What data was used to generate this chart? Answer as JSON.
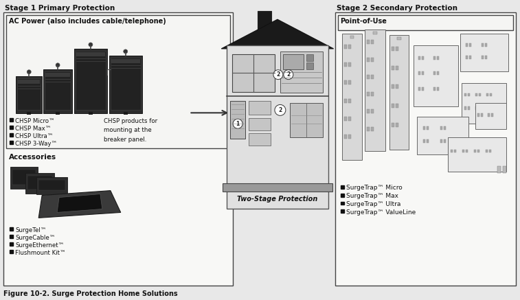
{
  "fig_width": 7.57,
  "fig_height": 4.37,
  "dpi": 100,
  "bg_color": "#e8e8e8",
  "page_color": "#f2f2f2",
  "caption": "Figure 10-2. Surge Protection Home Solutions",
  "stage1_title": "Stage 1 Primary Protection",
  "stage2_title": "Stage 2 Secondary Protection",
  "ac_power_title": "AC Power (also includes cable/telephone)",
  "point_of_use_title": "Point-of-Use",
  "accessories_title": "Accessories",
  "two_stage_label": "Two-Stage Protection",
  "chsp_products_text": "CHSP products for\nmounting at the\nbreaker panel.",
  "chsp_items": [
    "CHSP Micro™",
    "CHSP Max™",
    "CHSP Ultra™",
    "CHSP 3-Way™"
  ],
  "accessories_items": [
    "SurgeTel™",
    "SurgeCable™",
    "SurgeEthernet™",
    "Flushmount Kit™"
  ],
  "surgetrap_items": [
    "SurgeTrap™ Micro",
    "SurgeTrap™ Max",
    "SurgeTrap™ Ultra",
    "SurgeTrap™ ValueLine"
  ],
  "border_color": "#444444",
  "text_color": "#111111",
  "box_fill": "#f8f8f6",
  "inner_box_fill": "#f5f5f3",
  "photo_dark": "#2a2a2a",
  "photo_mid": "#555555",
  "photo_light": "#999999"
}
